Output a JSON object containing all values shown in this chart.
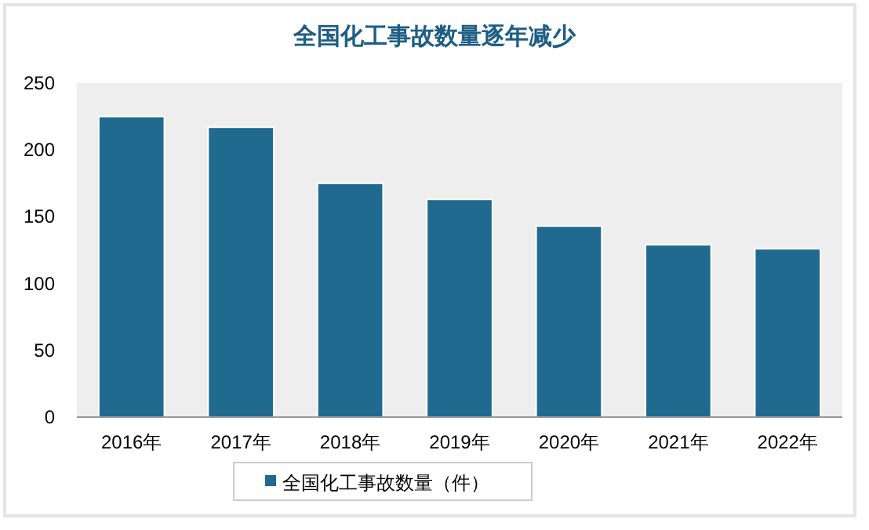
{
  "chart_data": {
    "type": "bar",
    "title": "全国化工事故数量逐年减少",
    "categories": [
      "2016年",
      "2017年",
      "2018年",
      "2019年",
      "2020年",
      "2021年",
      "2022年"
    ],
    "series": [
      {
        "name": "全国化工事故数量（件）",
        "color": "#1f6a8e",
        "values": [
          225,
          217,
          175,
          163,
          143,
          129,
          126
        ]
      }
    ],
    "ylim": [
      0,
      250
    ],
    "yticks": [
      0,
      50,
      100,
      150,
      200,
      250
    ],
    "grid": false,
    "legend": "bottom"
  }
}
